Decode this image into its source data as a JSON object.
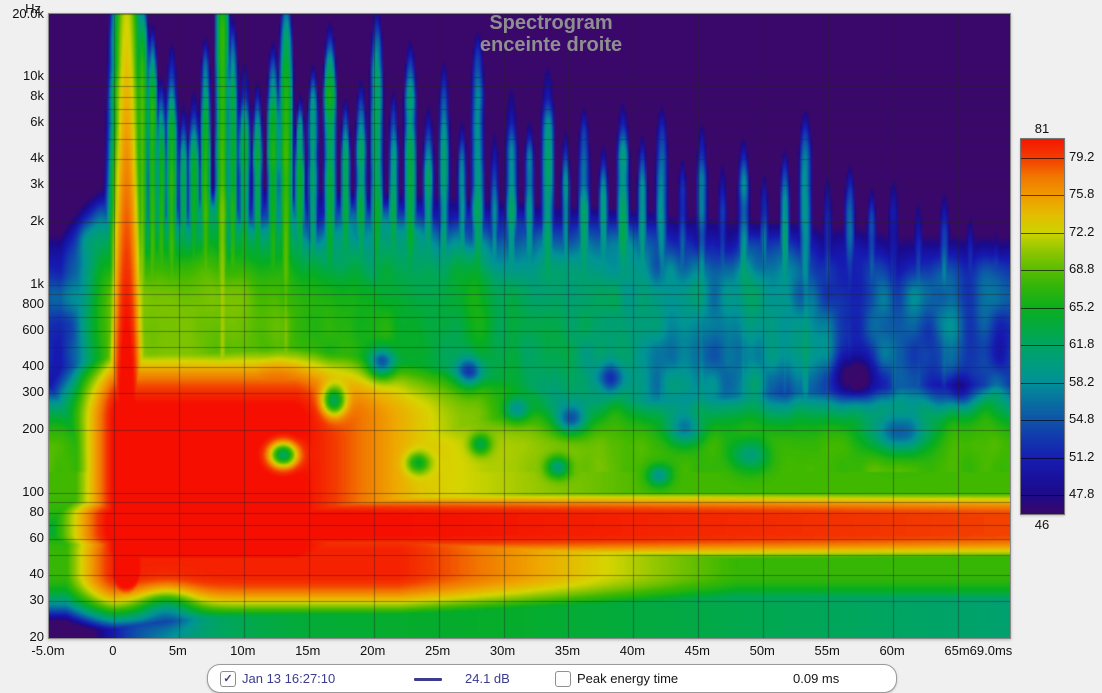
{
  "title": {
    "line1": "Spectrogram",
    "line2": "enceinte droite"
  },
  "colors": {
    "background": "#3a0769",
    "page": "#f0f0f0",
    "title_text": "#8f8f8f",
    "grid_line": "rgba(35,35,35,0.45)",
    "trace_navy": "#3c3c8e",
    "label_black": "#161616"
  },
  "y_axis": {
    "unit": "Hz",
    "ticks": [
      {
        "f": 20000,
        "label": "20.0k"
      },
      {
        "f": 10000,
        "label": "10k"
      },
      {
        "f": 8000,
        "label": "8k"
      },
      {
        "f": 6000,
        "label": "6k"
      },
      {
        "f": 4000,
        "label": "4k"
      },
      {
        "f": 3000,
        "label": "3k"
      },
      {
        "f": 2000,
        "label": "2k"
      },
      {
        "f": 1000,
        "label": "1k"
      },
      {
        "f": 800,
        "label": "800"
      },
      {
        "f": 600,
        "label": "600"
      },
      {
        "f": 400,
        "label": "400"
      },
      {
        "f": 300,
        "label": "300"
      },
      {
        "f": 200,
        "label": "200"
      },
      {
        "f": 100,
        "label": "100"
      },
      {
        "f": 80,
        "label": "80"
      },
      {
        "f": 60,
        "label": "60"
      },
      {
        "f": 40,
        "label": "40"
      },
      {
        "f": 30,
        "label": "30"
      },
      {
        "f": 20,
        "label": "20"
      }
    ],
    "grid_freqs": [
      20,
      30,
      40,
      50,
      60,
      70,
      80,
      90,
      100,
      200,
      300,
      400,
      500,
      600,
      700,
      800,
      900,
      1000,
      2000,
      3000,
      4000,
      5000,
      6000,
      7000,
      8000,
      9000,
      10000,
      20000
    ]
  },
  "x_axis": {
    "ticks": [
      {
        "t": -5,
        "label": "-5.0m"
      },
      {
        "t": 0,
        "label": "0"
      },
      {
        "t": 5,
        "label": "5m"
      },
      {
        "t": 10,
        "label": "10m"
      },
      {
        "t": 15,
        "label": "15m"
      },
      {
        "t": 20,
        "label": "20m"
      },
      {
        "t": 25,
        "label": "25m"
      },
      {
        "t": 30,
        "label": "30m"
      },
      {
        "t": 35,
        "label": "35m"
      },
      {
        "t": 40,
        "label": "40m"
      },
      {
        "t": 45,
        "label": "45m"
      },
      {
        "t": 50,
        "label": "50m"
      },
      {
        "t": 55,
        "label": "55m"
      },
      {
        "t": 60,
        "label": "60m"
      },
      {
        "t": 65,
        "label": "65m"
      },
      {
        "t": 69,
        "label": "69.0ms"
      }
    ],
    "grid_times": [
      0,
      5,
      10,
      15,
      20,
      25,
      30,
      35,
      40,
      45,
      50,
      55,
      60,
      65
    ]
  },
  "colorbar": {
    "max_label": "81",
    "min_label": "46",
    "min": 46,
    "max": 81,
    "ticks": [
      {
        "v": 79.2,
        "label": "79.2"
      },
      {
        "v": 75.8,
        "label": "75.8"
      },
      {
        "v": 72.2,
        "label": "72.2"
      },
      {
        "v": 68.8,
        "label": "68.8"
      },
      {
        "v": 65.2,
        "label": "65.2"
      },
      {
        "v": 61.8,
        "label": "61.8"
      },
      {
        "v": 58.2,
        "label": "58.2"
      },
      {
        "v": 54.8,
        "label": "54.8"
      },
      {
        "v": 51.2,
        "label": "51.2"
      },
      {
        "v": 47.8,
        "label": "47.8"
      }
    ]
  },
  "legend": {
    "measurement": {
      "checked": true,
      "label": "Jan 13 16:27:10",
      "level_label": "24.1 dB"
    },
    "peak": {
      "checked": false,
      "label": "Peak energy time",
      "value_label": "0.09 ms"
    }
  },
  "chart_data": {
    "type": "heatmap",
    "subtype": "spectrogram",
    "title": "Spectrogram",
    "subtitle": "enceinte droite",
    "x_unit": "ms",
    "x_range": [
      -5,
      69
    ],
    "y_unit": "Hz",
    "y_scale": "log",
    "y_range": [
      20,
      20000
    ],
    "z_unit": "dB",
    "z_range": [
      46,
      81
    ],
    "colormap_stops": [
      [
        41,
        57,
        8,
        106
      ],
      [
        46,
        57,
        8,
        106
      ],
      [
        48,
        26,
        10,
        140
      ],
      [
        51,
        22,
        26,
        178
      ],
      [
        54,
        16,
        70,
        172
      ],
      [
        56.5,
        8,
        112,
        160
      ],
      [
        58.5,
        0,
        148,
        150
      ],
      [
        62,
        0,
        166,
        94
      ],
      [
        65,
        6,
        174,
        32
      ],
      [
        68,
        64,
        184,
        0
      ],
      [
        70.5,
        142,
        198,
        0
      ],
      [
        72.5,
        214,
        213,
        0
      ],
      [
        75,
        238,
        170,
        0
      ],
      [
        77.5,
        241,
        118,
        0
      ],
      [
        79.3,
        243,
        58,
        0
      ],
      [
        81.5,
        246,
        12,
        0
      ]
    ],
    "model": {
      "floor_db": 41,
      "ridges": [
        {
          "c": 1.84,
          "p": 0.04,
          "k": 900,
          "a0": 82.5,
          "decay": 0.05,
          "dstart": 0,
          "floor": 60,
          "pre": 2.2,
          "prex": 1.35
        },
        {
          "c": 2.05,
          "p": 0.3,
          "k": 120,
          "a0": 82.0,
          "decay": 0.9,
          "dstart": 14,
          "floor": 20,
          "pre": 4.2,
          "prex": 1.1,
          "lowcut": [
            1.72,
            500
          ]
        },
        {
          "c": 2.1,
          "p": 0.1,
          "k": 140,
          "a0": 76.0,
          "decay": 0.3,
          "dstart": 15,
          "floor": 68,
          "pre": 2.2,
          "prex": 1.35
        },
        {
          "c": 1.66,
          "p": 0.05,
          "k": 400,
          "a0": 80.5,
          "decay": 0.5,
          "dstart": 22,
          "floor": 67.5,
          "pre": 2.2,
          "prex": 1.35
        },
        {
          "c": 2.62,
          "p": 0.25,
          "k": 60,
          "a0": 70.0,
          "decay": 0.28,
          "dstart": 6,
          "floor": 54,
          "pre": 2.5,
          "prex": 1.3
        }
      ],
      "bottom_band": {
        "c": 1.36,
        "p": 0.07,
        "k": 160,
        "base": 64.5,
        "rise": 20,
        "riseTau": 5,
        "riseT0": 2,
        "decay": 0.09,
        "dstart": 30
      },
      "blob": {
        "t": 12.5,
        "lf": 2.52,
        "amp": 78,
        "kt": 10,
        "wt": 5.5,
        "kf": 10,
        "wf": 0.16
      },
      "impulse": {
        "t0": 0.9,
        "amp": 87,
        "slope": 6.2,
        "lfref": 1.9,
        "wbase": 1.3,
        "wslope": 0.18,
        "wmin": 0.5,
        "kt": 10,
        "lowcut": [
          1.62,
          800
        ]
      },
      "spikes": [
        [
          2.1,
          4.05,
          72,
          0.4
        ],
        [
          2.9,
          3.85,
          70,
          0.35
        ],
        [
          3.6,
          3.6,
          69,
          0.35
        ],
        [
          4.4,
          3.75,
          70,
          0.4
        ],
        [
          5.3,
          3.5,
          67,
          0.35
        ],
        [
          6.1,
          3.55,
          68,
          0.4
        ],
        [
          7.0,
          3.8,
          69,
          0.35
        ],
        [
          8.3,
          4.22,
          72,
          0.45
        ],
        [
          9.1,
          3.9,
          69,
          0.35
        ],
        [
          10.0,
          3.7,
          67,
          0.4
        ],
        [
          11.0,
          3.6,
          67,
          0.35
        ],
        [
          12.2,
          3.8,
          68,
          0.4
        ],
        [
          13.2,
          4.05,
          70,
          0.45
        ],
        [
          14.3,
          3.55,
          66,
          0.35
        ],
        [
          15.3,
          3.7,
          66,
          0.4
        ],
        [
          16.6,
          3.9,
          67,
          0.45
        ],
        [
          17.8,
          3.55,
          65,
          0.35
        ],
        [
          19.0,
          3.65,
          65,
          0.4
        ],
        [
          20.2,
          4.0,
          66,
          0.45
        ],
        [
          21.5,
          3.6,
          64,
          0.35
        ],
        [
          22.8,
          3.85,
          65,
          0.45
        ],
        [
          24.2,
          3.55,
          63,
          0.4
        ],
        [
          25.4,
          3.75,
          64,
          0.4
        ],
        [
          26.8,
          3.5,
          62,
          0.35
        ],
        [
          28.0,
          3.9,
          64,
          0.5
        ],
        [
          29.3,
          3.45,
          62,
          0.35
        ],
        [
          30.6,
          3.65,
          63,
          0.45
        ],
        [
          32.0,
          3.5,
          62,
          0.4
        ],
        [
          33.4,
          3.75,
          63,
          0.5
        ],
        [
          34.8,
          3.45,
          61,
          0.35
        ],
        [
          36.2,
          3.55,
          62,
          0.45
        ],
        [
          37.7,
          3.4,
          60,
          0.4
        ],
        [
          39.2,
          3.6,
          61,
          0.5
        ],
        [
          40.7,
          3.45,
          60,
          0.4
        ],
        [
          42.2,
          3.6,
          60,
          0.5
        ],
        [
          43.8,
          3.35,
          59,
          0.4
        ],
        [
          45.3,
          3.5,
          60,
          0.45
        ],
        [
          46.9,
          3.35,
          58,
          0.4
        ],
        [
          48.5,
          3.45,
          59,
          0.5
        ],
        [
          50.1,
          3.3,
          57,
          0.4
        ],
        [
          51.7,
          3.4,
          58,
          0.45
        ],
        [
          53.3,
          3.6,
          59,
          0.55
        ],
        [
          55.0,
          3.3,
          57,
          0.4
        ],
        [
          56.7,
          3.35,
          57,
          0.5
        ],
        [
          58.4,
          3.25,
          56,
          0.45
        ],
        [
          60.1,
          3.3,
          56,
          0.5
        ],
        [
          62.0,
          3.2,
          55,
          0.45
        ],
        [
          64.0,
          3.25,
          55,
          0.5
        ],
        [
          66.0,
          3.15,
          54,
          0.45
        ],
        [
          68.0,
          3.1,
          53,
          0.5
        ]
      ],
      "spike_shape": {
        "slope": 3.2,
        "lfref": 2.6,
        "topk": 70,
        "topx": 1.5,
        "lowref": 2.45,
        "lowk": 25,
        "kt": 10
      },
      "holes": [
        [
          13.0,
          2.18,
          1.1,
          0.06,
          20
        ],
        [
          16.9,
          2.44,
          0.9,
          0.07,
          16
        ],
        [
          20.6,
          2.62,
          1.0,
          0.07,
          12
        ],
        [
          23.4,
          2.14,
          0.9,
          0.05,
          9
        ],
        [
          27.4,
          2.58,
          1.1,
          0.07,
          11
        ],
        [
          28.2,
          2.23,
          0.8,
          0.05,
          9
        ],
        [
          31.0,
          2.4,
          0.9,
          0.06,
          9
        ],
        [
          34.2,
          2.12,
          0.9,
          0.05,
          10
        ],
        [
          35.2,
          2.35,
          1.2,
          0.07,
          12
        ],
        [
          38.2,
          2.55,
          1.1,
          0.07,
          9
        ],
        [
          42.0,
          2.08,
          0.9,
          0.05,
          9
        ],
        [
          44.0,
          2.3,
          1.4,
          0.08,
          9
        ],
        [
          49.0,
          2.18,
          1.4,
          0.08,
          8
        ],
        [
          57.0,
          2.55,
          1.8,
          0.1,
          9
        ],
        [
          60.5,
          2.28,
          2.4,
          0.1,
          12
        ],
        [
          65.0,
          2.48,
          1.8,
          0.09,
          8
        ],
        [
          4.0,
          1.45,
          2.2,
          0.09,
          9
        ]
      ],
      "noise": {
        "lf_min": 2.1,
        "bands": [
          {
            "st": 2.6,
            "sf": 0.3,
            "amp": 6.0,
            "ox": 0,
            "oy": 0
          },
          {
            "st": 1.1,
            "sf": 0.14,
            "amp": 4.5,
            "ox": 37,
            "oy": 11
          },
          {
            "st": 1.4,
            "sf": 0.85,
            "amp": 5.0,
            "ox": 71,
            "oy": 29
          }
        ],
        "w1_center": 56,
        "w1_sigma": 7,
        "w2_center": 66,
        "w2_sigma": 6,
        "w2_amp": 0.25
      }
    }
  }
}
